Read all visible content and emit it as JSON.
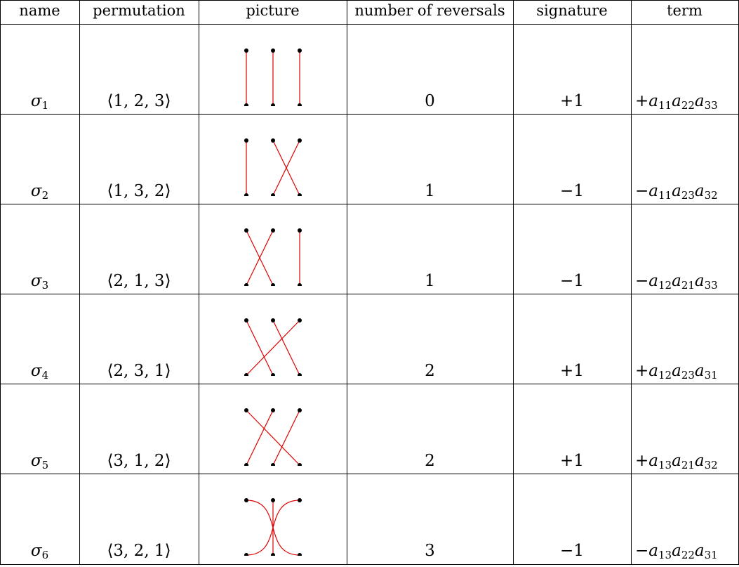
{
  "headers": {
    "name": "name",
    "permutation": "permutation",
    "picture": "picture",
    "reversals": "number of reversals",
    "signature": "signature",
    "term": "term"
  },
  "rows": [
    {
      "name_letter": "σ",
      "name_index": "1",
      "permutation": "⟨1, 2, 3⟩",
      "perm": [
        1,
        2,
        3
      ],
      "reversals": "0",
      "signature": "+1",
      "term": {
        "sign": "+",
        "factors": [
          [
            "a",
            "11"
          ],
          [
            "a",
            "22"
          ],
          [
            "a",
            "33"
          ]
        ]
      }
    },
    {
      "name_letter": "σ",
      "name_index": "2",
      "permutation": "⟨1, 3, 2⟩",
      "perm": [
        1,
        3,
        2
      ],
      "reversals": "1",
      "signature": "−1",
      "term": {
        "sign": "−",
        "factors": [
          [
            "a",
            "11"
          ],
          [
            "a",
            "23"
          ],
          [
            "a",
            "32"
          ]
        ]
      }
    },
    {
      "name_letter": "σ",
      "name_index": "3",
      "permutation": "⟨2, 1, 3⟩",
      "perm": [
        2,
        1,
        3
      ],
      "reversals": "1",
      "signature": "−1",
      "term": {
        "sign": "−",
        "factors": [
          [
            "a",
            "12"
          ],
          [
            "a",
            "21"
          ],
          [
            "a",
            "33"
          ]
        ]
      }
    },
    {
      "name_letter": "σ",
      "name_index": "4",
      "permutation": "⟨2, 3, 1⟩",
      "perm": [
        2,
        3,
        1
      ],
      "reversals": "2",
      "signature": "+1",
      "term": {
        "sign": "+",
        "factors": [
          [
            "a",
            "12"
          ],
          [
            "a",
            "23"
          ],
          [
            "a",
            "31"
          ]
        ]
      }
    },
    {
      "name_letter": "σ",
      "name_index": "5",
      "permutation": "⟨3, 1, 2⟩",
      "perm": [
        3,
        1,
        2
      ],
      "reversals": "2",
      "signature": "+1",
      "term": {
        "sign": "+",
        "factors": [
          [
            "a",
            "13"
          ],
          [
            "a",
            "21"
          ],
          [
            "a",
            "32"
          ]
        ]
      }
    },
    {
      "name_letter": "σ",
      "name_index": "6",
      "permutation": "⟨3, 2, 1⟩",
      "perm": [
        3,
        2,
        1
      ],
      "reversals": "3",
      "signature": "−1",
      "term": {
        "sign": "−",
        "factors": [
          [
            "a",
            "13"
          ],
          [
            "a",
            "22"
          ],
          [
            "a",
            "31"
          ]
        ]
      }
    }
  ],
  "colors": {
    "line": "#e00000",
    "dot": "#000000"
  }
}
